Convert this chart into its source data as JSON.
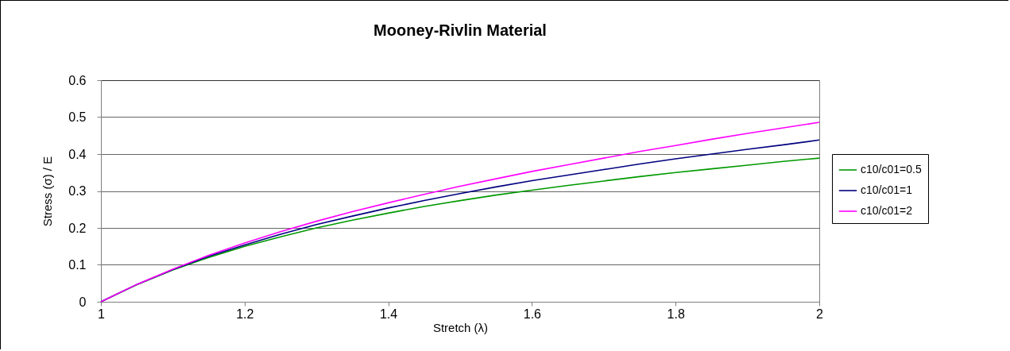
{
  "chart_data": {
    "type": "line",
    "title": "Mooney-Rivlin Material",
    "xlabel": "Stretch (λ)",
    "ylabel": "Stress (σ) / E",
    "x": [
      1,
      1.05,
      1.1,
      1.15,
      1.2,
      1.25,
      1.3,
      1.35,
      1.4,
      1.45,
      1.5,
      1.55,
      1.6,
      1.65,
      1.7,
      1.75,
      1.8,
      1.85,
      1.9,
      1.95,
      2
    ],
    "series": [
      {
        "name": "c10/c01=0.5",
        "color": "#009900",
        "values": [
          0,
          0.046,
          0.086,
          0.12,
          0.15,
          0.176,
          0.2,
          0.221,
          0.24,
          0.258,
          0.274,
          0.289,
          0.302,
          0.315,
          0.327,
          0.339,
          0.35,
          0.36,
          0.37,
          0.38,
          0.389
        ]
      },
      {
        "name": "c10/c01=1",
        "color": "#000080",
        "values": [
          0,
          0.047,
          0.087,
          0.123,
          0.154,
          0.183,
          0.209,
          0.232,
          0.254,
          0.274,
          0.293,
          0.311,
          0.328,
          0.343,
          0.358,
          0.373,
          0.387,
          0.4,
          0.413,
          0.425,
          0.438
        ]
      },
      {
        "name": "c10/c01=2",
        "color": "#ff00ff",
        "values": [
          0,
          0.047,
          0.088,
          0.126,
          0.159,
          0.19,
          0.218,
          0.244,
          0.268,
          0.291,
          0.313,
          0.333,
          0.353,
          0.371,
          0.389,
          0.407,
          0.423,
          0.44,
          0.456,
          0.471,
          0.486
        ]
      }
    ],
    "xlim": [
      1,
      2
    ],
    "xticks": [
      1,
      1.2,
      1.4,
      1.6,
      1.8,
      2
    ],
    "ylim": [
      0,
      0.6
    ],
    "yticks": [
      0,
      0.1,
      0.2,
      0.3,
      0.4,
      0.5,
      0.6
    ],
    "grid": "y",
    "legend": "right",
    "marker": "none",
    "line_style": "solid"
  }
}
